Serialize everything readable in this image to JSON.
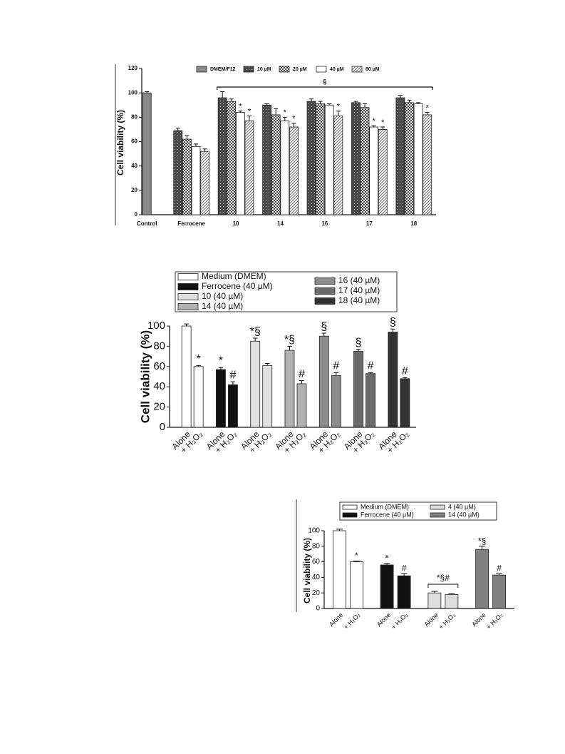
{
  "chart_data": [
    {
      "type": "bar",
      "group_by": "category",
      "y_label": "Cell viability (%)",
      "categories": [
        "Control",
        "Ferrocene",
        "10",
        "14",
        "16",
        "17",
        "18"
      ],
      "ylim": [
        0,
        120
      ],
      "yticks": [
        0,
        20,
        40,
        60,
        80,
        100,
        120
      ],
      "bracket": {
        "label": "§",
        "from": 2,
        "to": 6
      },
      "series": [
        {
          "name": "DMEM/F12",
          "color": "#8a8a8a",
          "pattern": null,
          "values": [
            100,
            null,
            null,
            null,
            null,
            null,
            null
          ],
          "errors": [
            1,
            null,
            null,
            null,
            null,
            null,
            null
          ],
          "markers": [
            null,
            null,
            null,
            null,
            null,
            null,
            null
          ]
        },
        {
          "name": "10 µM",
          "color": "#4a4a4a",
          "pattern": "dots",
          "values": [
            null,
            69,
            96,
            90,
            93,
            92,
            96
          ],
          "errors": [
            null,
            2,
            5,
            1,
            2,
            1,
            2
          ],
          "markers": [
            null,
            null,
            null,
            null,
            null,
            null,
            null
          ]
        },
        {
          "name": "20 µM",
          "color": "#444444",
          "pattern": "checker",
          "values": [
            null,
            62,
            93,
            82,
            91,
            88,
            92
          ],
          "errors": [
            null,
            3,
            2,
            5,
            2,
            3,
            2
          ],
          "markers": [
            null,
            null,
            null,
            null,
            null,
            null,
            null
          ]
        },
        {
          "name": "40 µM",
          "color": "#ffffff",
          "pattern": null,
          "values": [
            null,
            56,
            84,
            77,
            90,
            72,
            91
          ],
          "errors": [
            null,
            2,
            1,
            3,
            1,
            1,
            1
          ],
          "markers": [
            null,
            null,
            "*",
            "*",
            null,
            "*",
            null
          ]
        },
        {
          "name": "80 µM",
          "color": "#555555",
          "pattern": "hatch",
          "values": [
            null,
            52,
            77,
            72,
            81,
            70,
            82
          ],
          "errors": [
            null,
            2,
            4,
            3,
            4,
            2,
            2
          ],
          "markers": [
            null,
            null,
            "*",
            "*",
            "*",
            "*",
            "*"
          ]
        }
      ]
    },
    {
      "type": "bar",
      "group_by": "series",
      "y_label": "Cell viability (%)",
      "categories": [
        "Alone",
        "+ H₂O₂"
      ],
      "ylim": [
        0,
        100
      ],
      "yticks": [
        0,
        20,
        40,
        60,
        80,
        100
      ],
      "series": [
        {
          "name": "Medium (DMEM)",
          "color": "#ffffff",
          "values": [
            100,
            60
          ],
          "errors": [
            2,
            1
          ],
          "markers": [
            null,
            "*"
          ]
        },
        {
          "name": "Ferrocene (40 µM)",
          "color": "#111111",
          "values": [
            57,
            42
          ],
          "errors": [
            2,
            3
          ],
          "markers": [
            "*",
            "#"
          ]
        },
        {
          "name": "10 (40 µM)",
          "color": "#e0e0e0",
          "values": [
            85,
            61
          ],
          "errors": [
            3,
            2
          ],
          "markers": [
            "*§",
            null
          ]
        },
        {
          "name": "14 (40 µM)",
          "color": "#b0b0b0",
          "values": [
            76,
            43
          ],
          "errors": [
            4,
            3
          ],
          "markers": [
            "*§",
            "#"
          ]
        },
        {
          "name": "16 (40 µM)",
          "color": "#8c8c8c",
          "values": [
            90,
            51
          ],
          "errors": [
            3,
            3
          ],
          "markers": [
            "§",
            "#"
          ]
        },
        {
          "name": "17 (40 µM)",
          "color": "#6a6a6a",
          "values": [
            75,
            53
          ],
          "errors": [
            2,
            1
          ],
          "markers": [
            "§",
            "#"
          ]
        },
        {
          "name": "18 (40 µM)",
          "color": "#333333",
          "values": [
            94,
            48
          ],
          "errors": [
            3,
            1
          ],
          "markers": [
            "§",
            "#"
          ]
        }
      ]
    },
    {
      "type": "bar",
      "group_by": "series",
      "y_label": "Cell viability (%)",
      "categories": [
        "Alone",
        "+ H₂O₂"
      ],
      "ylim": [
        0,
        100
      ],
      "yticks": [
        0,
        20,
        40,
        60,
        80,
        100
      ],
      "series": [
        {
          "name": "Medium (DMEM)",
          "color": "#ffffff",
          "values": [
            100,
            60
          ],
          "errors": [
            2,
            1
          ],
          "markers": [
            null,
            "*"
          ]
        },
        {
          "name": "Ferrocene (40 µM)",
          "color": "#111111",
          "values": [
            56,
            42
          ],
          "errors": [
            2,
            3
          ],
          "markers": [
            "*",
            "#"
          ]
        },
        {
          "name": "4 (40 µM)",
          "color": "#dcdcdc",
          "values": [
            20,
            18
          ],
          "errors": [
            2,
            1
          ],
          "markers": [
            null,
            null
          ],
          "bracket": "*§#"
        },
        {
          "name": "14 (40 µM)",
          "color": "#808080",
          "values": [
            76,
            43
          ],
          "errors": [
            4,
            2
          ],
          "markers": [
            "*§",
            "#"
          ]
        }
      ]
    }
  ]
}
